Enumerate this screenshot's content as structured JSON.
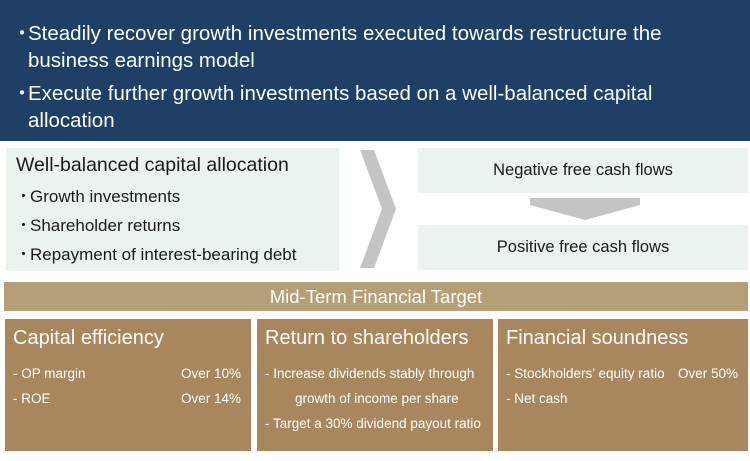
{
  "banner": {
    "bullet": "・",
    "lines": [
      "Steadily recover growth investments executed towards restructure the business earnings model",
      "Execute further growth investments based on a well-balanced capital allocation"
    ]
  },
  "allocation": {
    "title": "Well-balanced capital allocation",
    "bullet": "・",
    "items": [
      "Growth investments",
      "Shareholder returns",
      "Repayment of interest-bearing debt"
    ]
  },
  "cash_flows": {
    "negative": "Negative free cash flows",
    "positive": "Positive free cash flows"
  },
  "target_header": "Mid-Term Financial Target",
  "columns": {
    "capital": {
      "title": "Capital efficiency",
      "rows": [
        {
          "label": "- OP margin",
          "value": "Over 10%"
        },
        {
          "label": "- ROE",
          "value": "Over 14%"
        }
      ]
    },
    "returns": {
      "title": "Return to shareholders",
      "lines": [
        "- Increase dividends stably through",
        "growth of income per share",
        "- Target a 30% dividend payout ratio"
      ]
    },
    "financial": {
      "title": "Financial soundness",
      "rows": [
        {
          "label": "- Stockholders’ equity ratio",
          "value": "Over 50%"
        },
        {
          "label": "- Net cash",
          "value": ""
        }
      ]
    }
  },
  "colors": {
    "banner": "#1f3f66",
    "light_green": "#eaf4ec",
    "gold_header": "#b59f77",
    "gold_column": "#a8875f",
    "grey_arrow": "#c4c4c4"
  }
}
